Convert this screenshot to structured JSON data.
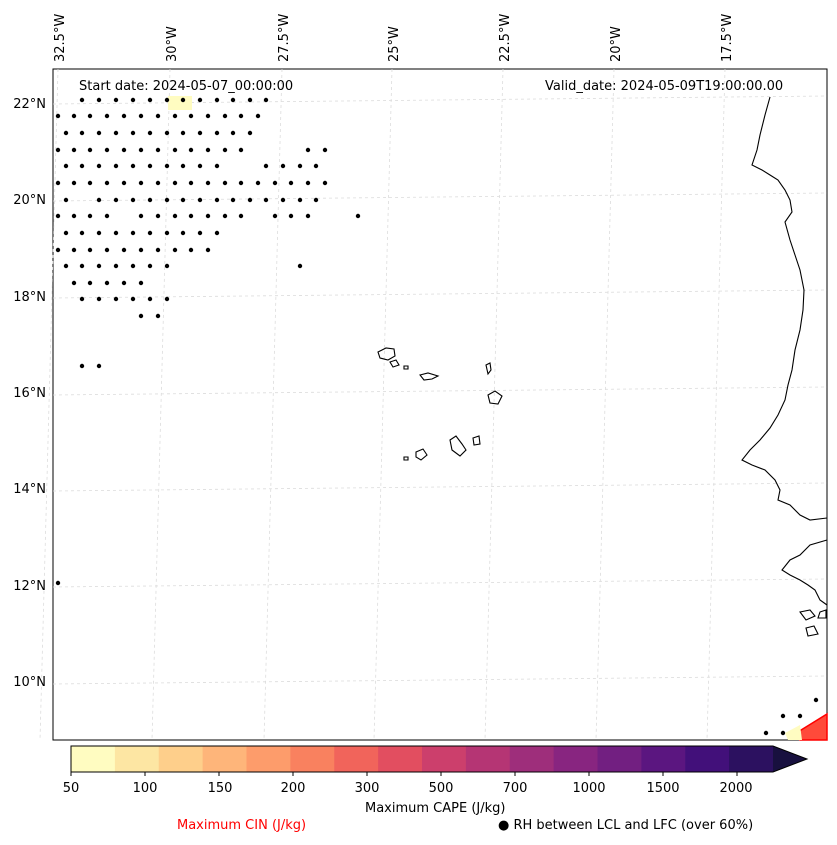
{
  "header": {
    "start_date": "Start date: 2024-05-07_00:00:00",
    "valid_date": "Valid_date: 2024-05-09T19:00:00.00"
  },
  "axes": {
    "lon_labels": [
      "32.5°W",
      "30°W",
      "27.5°W",
      "25°W",
      "22.5°W",
      "20°W",
      "17.5°W"
    ],
    "lat_labels": [
      "22°N",
      "20°N",
      "18°N",
      "16°N",
      "14°N",
      "12°N",
      "10°N"
    ]
  },
  "colorbar": {
    "title": "Maximum CAPE (J/kg)",
    "tick_labels": [
      "50",
      "100",
      "150",
      "200",
      "300",
      "500",
      "700",
      "1000",
      "1500",
      "2000"
    ],
    "colors": [
      "#fffcc1",
      "#fde6a3",
      "#fecf8b",
      "#feb57a",
      "#fd9c6b",
      "#f9815f",
      "#f1645b",
      "#e24e60",
      "#cc3f6c",
      "#b53574",
      "#9e2e7b",
      "#882580",
      "#721f81",
      "#5b1680",
      "#42107a",
      "#2c1160",
      "#18103f"
    ]
  },
  "legend": {
    "cin_label": "Maximum CIN (J/kg)",
    "cin_color": "#ff0000",
    "rh_label": "RH between LCL and LFC (over 60%)",
    "rh_marker": "●"
  }
}
